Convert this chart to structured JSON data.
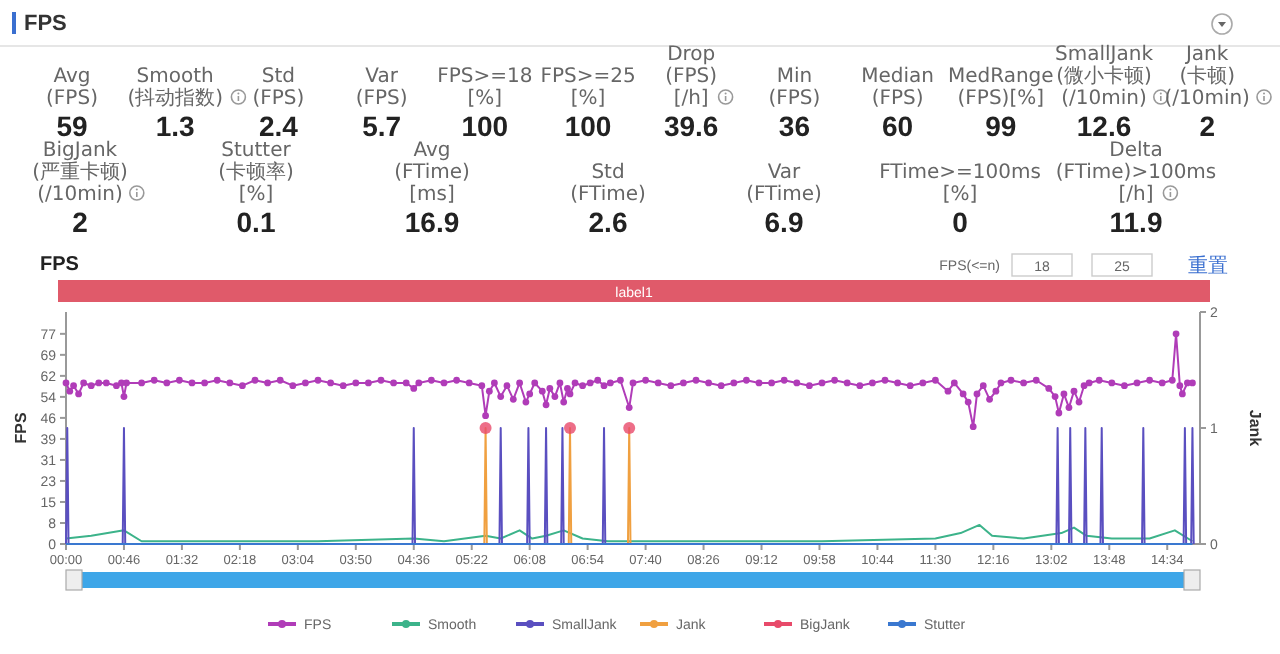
{
  "chart_data": [
    {
      "type": "other",
      "title": "FPS",
      "annotations": [
        "Avg(FPS)",
        "59",
        "Smooth(抖动指数)",
        "1.3",
        "Std(FPS)",
        "2.4",
        "Var(FPS)",
        "5.7",
        "FPS>=18 [%]",
        "100",
        "FPS>=25 [%]",
        "100",
        "Drop(FPS) [/h]",
        "39.6",
        "Min(FPS)",
        "36",
        "Median(FPS)",
        "60",
        "MedRange(FPS)[%]",
        "99",
        "SmallJank(微小卡顿)(/10min)",
        "12.6",
        "Jank(卡顿)(/10min)",
        "2",
        "BigJank(严重卡顿)(/10min)",
        "2",
        "Stutter(卡顿率) [%]",
        "0.1",
        "Avg(FTime) [ms]",
        "16.9",
        "Std(FTime)",
        "2.6",
        "Var(FTime)",
        "6.9",
        "FTime>=100ms [%]",
        "0",
        "Delta(FTime)>100ms [/h]",
        "11.9"
      ]
    },
    {
      "type": "line",
      "title": "FPS",
      "ylabel": "FPS",
      "y2label": "Jank",
      "annotations": [
        "label1",
        "FPS(<=n)",
        "18",
        "25",
        "重置"
      ],
      "legend": "bottom",
      "xlim": [
        0,
        900
      ],
      "xticks": [
        {
          "value": 0,
          "label": "00:00"
        },
        {
          "value": 46,
          "label": "00:46"
        },
        {
          "value": 92,
          "label": "01:32"
        },
        {
          "value": 138,
          "label": "02:18"
        },
        {
          "value": 184,
          "label": "03:04"
        },
        {
          "value": 230,
          "label": "03:50"
        },
        {
          "value": 276,
          "label": "04:36"
        },
        {
          "value": 322,
          "label": "05:22"
        },
        {
          "value": 368,
          "label": "06:08"
        },
        {
          "value": 414,
          "label": "06:54"
        },
        {
          "value": 460,
          "label": "07:40"
        },
        {
          "value": 506,
          "label": "08:26"
        },
        {
          "value": 552,
          "label": "09:12"
        },
        {
          "value": 598,
          "label": "09:58"
        },
        {
          "value": 644,
          "label": "10:44"
        },
        {
          "value": 690,
          "label": "11:30"
        },
        {
          "value": 736,
          "label": "12:16"
        },
        {
          "value": 782,
          "label": "13:02"
        },
        {
          "value": 828,
          "label": "13:48"
        },
        {
          "value": 874,
          "label": "14:34"
        }
      ],
      "ylim": [
        0,
        85
      ],
      "yticks": [
        0,
        {
          "value": 7.7,
          "label": "8"
        },
        {
          "value": 15.4,
          "label": "15"
        },
        {
          "value": 23.1,
          "label": "23"
        },
        {
          "value": 30.8,
          "label": "31"
        },
        {
          "value": 38.5,
          "label": "39"
        },
        {
          "value": 46.2,
          "label": "46"
        },
        {
          "value": 53.9,
          "label": "54"
        },
        {
          "value": 61.6,
          "label": "62"
        },
        {
          "value": 69.3,
          "label": "69"
        },
        77
      ],
      "y2lim": [
        0,
        2
      ],
      "y2ticks": [
        0,
        1,
        2
      ],
      "series": [
        {
          "name": "FPS",
          "type": "line",
          "color": "#b03cb8",
          "marker": "circle",
          "x": [
            0,
            3,
            6,
            10,
            14,
            20,
            26,
            32,
            40,
            44,
            46,
            48,
            60,
            70,
            80,
            90,
            100,
            110,
            120,
            130,
            140,
            150,
            160,
            170,
            180,
            190,
            200,
            210,
            220,
            230,
            240,
            250,
            260,
            270,
            276,
            280,
            290,
            300,
            310,
            320,
            330,
            333,
            336,
            340,
            345,
            350,
            355,
            360,
            365,
            368,
            372,
            378,
            381,
            384,
            388,
            392,
            395,
            398,
            400,
            404,
            410,
            416,
            422,
            427,
            432,
            440,
            447,
            450,
            460,
            470,
            480,
            490,
            500,
            510,
            520,
            530,
            540,
            550,
            560,
            570,
            580,
            590,
            600,
            610,
            620,
            630,
            640,
            650,
            660,
            670,
            680,
            690,
            700,
            705,
            712,
            716,
            720,
            723,
            728,
            733,
            738,
            742,
            750,
            760,
            770,
            780,
            785,
            788,
            792,
            796,
            800,
            804,
            808,
            812,
            820,
            830,
            840,
            850,
            860,
            870,
            878,
            881,
            884,
            886,
            890,
            894
          ],
          "values": [
            59,
            56,
            58,
            55,
            59,
            58,
            59,
            59,
            58,
            59,
            54,
            59,
            59,
            60,
            59,
            60,
            59,
            59,
            60,
            59,
            58,
            60,
            59,
            60,
            58,
            59,
            60,
            59,
            58,
            59,
            59,
            60,
            59,
            59,
            57,
            59,
            60,
            59,
            60,
            59,
            58,
            47,
            56,
            59,
            54,
            58,
            53,
            59,
            52,
            55,
            59,
            56,
            51,
            57,
            54,
            59,
            52,
            57,
            55,
            59,
            58,
            59,
            60,
            58,
            59,
            60,
            50,
            59,
            60,
            59,
            58,
            59,
            60,
            59,
            58,
            59,
            60,
            59,
            59,
            60,
            59,
            58,
            59,
            60,
            59,
            58,
            59,
            60,
            59,
            58,
            59,
            60,
            56,
            59,
            55,
            52,
            43,
            55,
            58,
            53,
            56,
            59,
            60,
            59,
            60,
            57,
            54,
            48,
            55,
            50,
            56,
            52,
            58,
            59,
            60,
            59,
            58,
            59,
            60,
            59,
            60,
            77,
            58,
            55,
            59,
            59
          ]
        },
        {
          "name": "Smooth",
          "type": "line",
          "color": "#3cb38a",
          "x": [
            0,
            20,
            46,
            60,
            100,
            150,
            200,
            276,
            300,
            333,
            345,
            360,
            370,
            381,
            395,
            410,
            430,
            500,
            600,
            690,
            710,
            725,
            735,
            760,
            790,
            800,
            810,
            830,
            860,
            880,
            894
          ],
          "values": [
            2,
            3,
            5,
            1,
            1,
            1,
            1,
            2,
            1,
            3,
            2,
            5,
            2,
            3,
            5,
            2,
            1,
            1,
            1,
            2,
            4,
            7,
            3,
            2,
            4,
            6,
            3,
            2,
            2,
            5,
            1
          ]
        },
        {
          "name": "SmallJank",
          "type": "line",
          "color": "#5a4fc0",
          "axis": "y2",
          "x": [
            0,
            1,
            2,
            45,
            46,
            47,
            275,
            276,
            277,
            344,
            345,
            346,
            366,
            367,
            368,
            380,
            381,
            382,
            393,
            394,
            395,
            426,
            427,
            428,
            786,
            787,
            788,
            796,
            797,
            798,
            808,
            809,
            810,
            821,
            822,
            823,
            854,
            855,
            856,
            887,
            888,
            889,
            893,
            894,
            895
          ],
          "values": [
            0,
            1,
            0,
            0,
            1,
            0,
            0,
            1,
            0,
            0,
            1,
            0,
            0,
            1,
            0,
            0,
            1,
            0,
            0,
            1,
            0,
            0,
            1,
            0,
            0,
            1,
            0,
            0,
            1,
            0,
            0,
            1,
            0,
            0,
            1,
            0,
            0,
            1,
            0,
            0,
            1,
            0,
            0,
            1,
            0
          ]
        },
        {
          "name": "Jank",
          "type": "line",
          "color": "#f0a040",
          "axis": "y2",
          "x": [
            332,
            333,
            334,
            399,
            400,
            401,
            446,
            447,
            448
          ],
          "values": [
            0,
            1,
            0,
            0,
            1,
            0,
            0,
            1,
            0
          ]
        },
        {
          "name": "BigJank",
          "type": "scatter",
          "color": "#e84a6a",
          "axis": "y2",
          "marker": "circle",
          "x": [
            333,
            400,
            447
          ],
          "values": [
            1,
            1,
            1
          ]
        },
        {
          "name": "Stutter",
          "type": "line",
          "color": "#3a78d0",
          "x": [
            0,
            894
          ],
          "values": [
            0,
            0
          ]
        }
      ]
    }
  ]
}
